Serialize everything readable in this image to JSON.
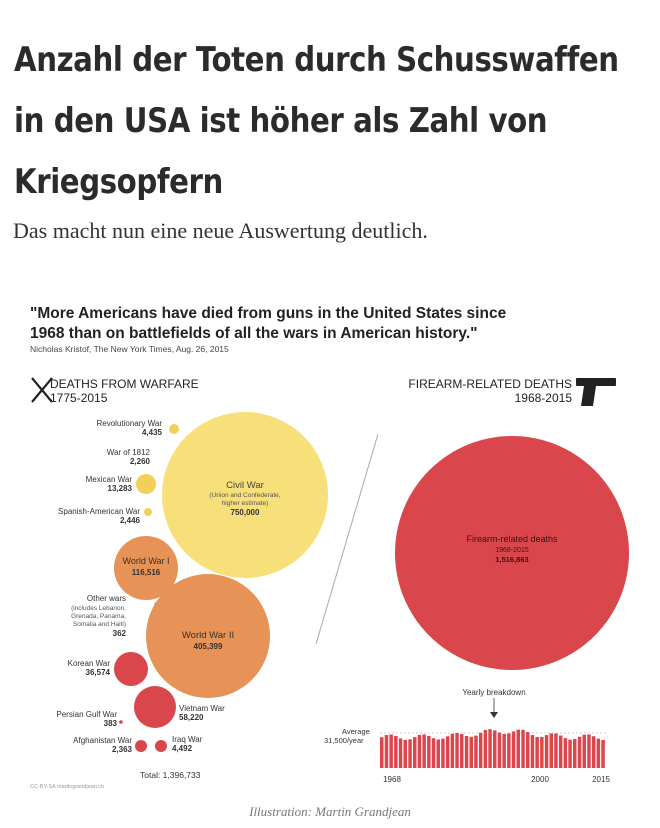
{
  "article": {
    "headline_lines": [
      "Anzahl der Toten durch Schusswaffen",
      "in den USA ist höher als Zahl von",
      "Kriegsopfern"
    ],
    "subline": "Das macht nun eine neue Auswertung deutlich."
  },
  "figure": {
    "quote_line1": "\"More Americans have died from guns in the United States since",
    "quote_line2": "1968 than on battlefields of all the wars in American history.\"",
    "attribution": "Nicholas Kristof, The New York Times, Aug. 26, 2015",
    "warfare_title": "DEATHS FROM WARFARE",
    "warfare_years": "1775-2015",
    "firearm_title": "FIREARM-RELATED DEATHS",
    "firearm_years": "1968-2015",
    "wars": [
      {
        "name": "Revolutionary War",
        "value": "4,435"
      },
      {
        "name": "War of 1812",
        "value": "2,260"
      },
      {
        "name": "Mexican War",
        "value": "13,283"
      },
      {
        "name": "Spanish-American War",
        "value": "2,446"
      },
      {
        "name": "Civil War",
        "note1": "(Union and Confederate,",
        "note2": "higher estimate)",
        "value": "750,000"
      },
      {
        "name": "World War I",
        "value": "116,516"
      },
      {
        "name": "Other wars",
        "note1": "(includes Lebanon,",
        "note2": "Grenada, Panama,",
        "note3": "Somalia and Haiti)",
        "value": "362"
      },
      {
        "name": "World War II",
        "value": "405,399"
      },
      {
        "name": "Korean War",
        "value": "36,574"
      },
      {
        "name": "Persian Gulf War",
        "value": "383"
      },
      {
        "name": "Vietnam War",
        "value": "58,220"
      },
      {
        "name": "Afghanistan War",
        "value": "2,363"
      },
      {
        "name": "Iraq War",
        "value": "4,492"
      }
    ],
    "total": "Total: 1,396,733",
    "credit": "CC-BY-SA martingrandjean.ch",
    "firearm_label": "Firearm-related deaths",
    "firearm_label_years": "1968-2015",
    "firearm_value": "1,516,863",
    "yearly_breakdown": "Yearly breakdown",
    "average_label": "Average",
    "average_value": "31,500/year",
    "axis_ticks": [
      "1968",
      "2000",
      "2015"
    ]
  },
  "caption": "Illustration: Martin Grandjean",
  "chart_data": {
    "type": "bar",
    "note": "",
    "x": [
      1968,
      2015
    ],
    "average_per_year": 31500,
    "total": 1516863
  },
  "colors": {
    "civil_war": "#f7df7a",
    "world_war": "#e79256",
    "red": "#d9474c",
    "small_yellow": "#f2cf5a"
  }
}
